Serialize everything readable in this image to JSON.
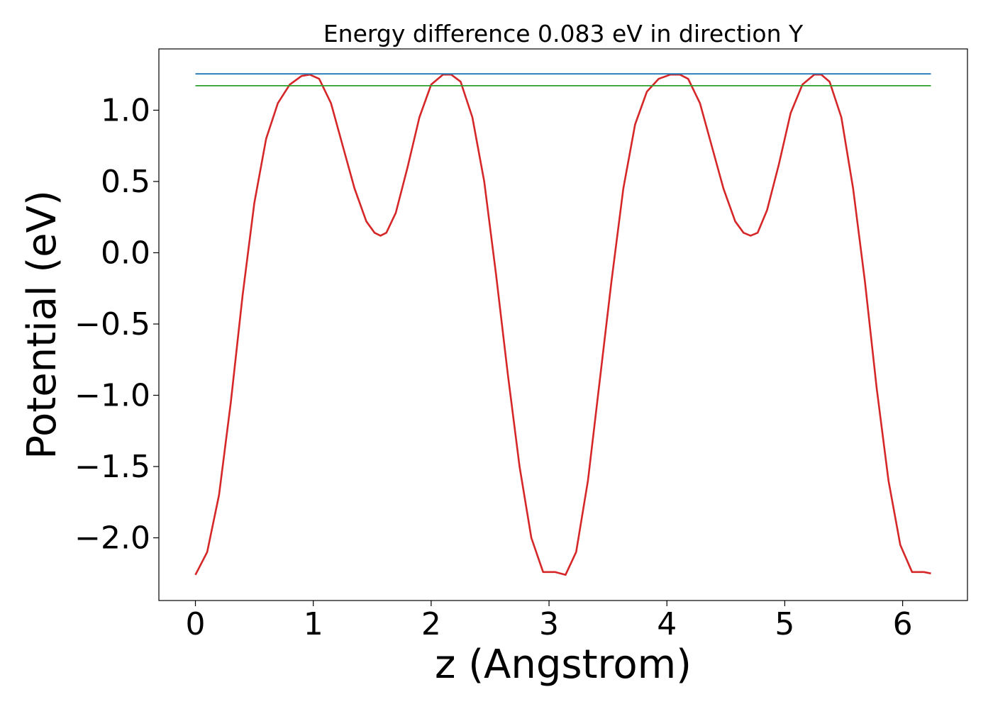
{
  "chart_data": {
    "type": "line",
    "title": "Energy difference 0.083 eV in direction Y",
    "xlabel": "z (Angstrom)",
    "ylabel": "Potential (eV)",
    "xlim": [
      -0.31,
      6.55
    ],
    "ylim": [
      -2.44,
      1.43
    ],
    "xticks": [
      0,
      1,
      2,
      3,
      4,
      5,
      6
    ],
    "xtick_labels": [
      "0",
      "1",
      "2",
      "3",
      "4",
      "5",
      "6"
    ],
    "yticks": [
      1.0,
      0.5,
      0.0,
      -0.5,
      -1.0,
      -1.5,
      -2.0
    ],
    "ytick_labels": [
      "1.0",
      "0.5",
      "0.0",
      "−0.5",
      "−1.0",
      "−1.5",
      "−2.0"
    ],
    "grid": false,
    "series": [
      {
        "color": "#d62728",
        "style": "curve",
        "x": [
          0.0,
          0.1,
          0.2,
          0.3,
          0.4,
          0.5,
          0.6,
          0.7,
          0.8,
          0.9,
          0.97,
          1.05,
          1.15,
          1.25,
          1.35,
          1.45,
          1.52,
          1.57,
          1.62,
          1.7,
          1.8,
          1.9,
          2.0,
          2.1,
          2.17,
          2.25,
          2.35,
          2.45,
          2.55,
          2.65,
          2.75,
          2.85,
          2.95,
          3.05,
          3.14,
          3.23,
          3.33,
          3.43,
          3.53,
          3.63,
          3.73,
          3.83,
          3.93,
          4.03,
          4.11,
          4.18,
          4.28,
          4.38,
          4.48,
          4.58,
          4.65,
          4.71,
          4.77,
          4.85,
          4.95,
          5.05,
          5.15,
          5.25,
          5.31,
          5.38,
          5.48,
          5.58,
          5.68,
          5.78,
          5.88,
          5.98,
          6.08,
          6.18,
          6.24
        ],
        "y": [
          -2.26,
          -2.1,
          -1.7,
          -1.05,
          -0.3,
          0.35,
          0.8,
          1.05,
          1.18,
          1.24,
          1.25,
          1.22,
          1.05,
          0.75,
          0.45,
          0.22,
          0.14,
          0.12,
          0.14,
          0.28,
          0.6,
          0.95,
          1.18,
          1.25,
          1.25,
          1.2,
          0.95,
          0.5,
          -0.15,
          -0.85,
          -1.5,
          -2.0,
          -2.24,
          -2.24,
          -2.26,
          -2.1,
          -1.6,
          -0.9,
          -0.2,
          0.45,
          0.9,
          1.13,
          1.22,
          1.25,
          1.25,
          1.22,
          1.05,
          0.75,
          0.45,
          0.22,
          0.14,
          0.12,
          0.14,
          0.3,
          0.62,
          0.98,
          1.18,
          1.25,
          1.25,
          1.2,
          0.95,
          0.45,
          -0.2,
          -0.95,
          -1.6,
          -2.05,
          -2.24,
          -2.24,
          -2.25
        ]
      },
      {
        "color": "#1f77b4",
        "style": "hline",
        "x": [
          0.0,
          6.24
        ],
        "y": [
          1.255,
          1.255
        ]
      },
      {
        "color": "#2ca02c",
        "style": "hline",
        "x": [
          0.0,
          6.24
        ],
        "y": [
          1.172,
          1.172
        ]
      }
    ]
  }
}
